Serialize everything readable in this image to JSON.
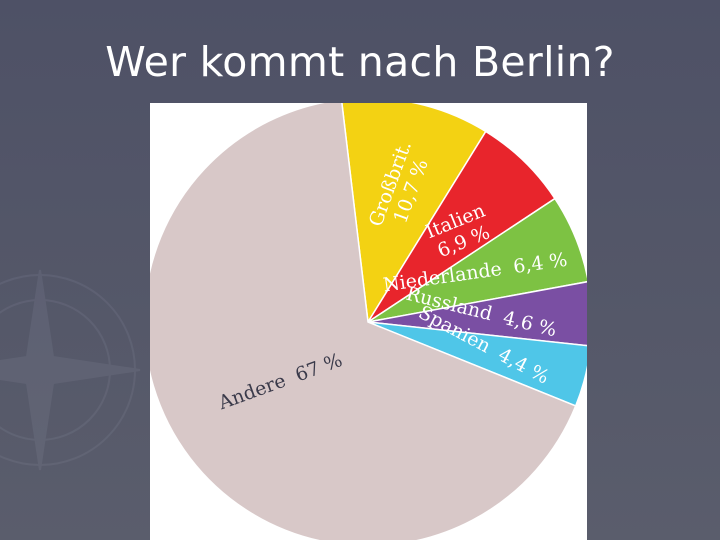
{
  "slide": {
    "title": "Wer kommt nach Berlin?"
  },
  "chart_data": {
    "type": "pie",
    "title": "",
    "slices": [
      {
        "category": "Großbrit.",
        "value": 10.7,
        "label_value": "10,7 %",
        "color": "#f3d213"
      },
      {
        "category": "Italien",
        "value": 6.9,
        "label_value": "6,9 %",
        "color": "#e8252c"
      },
      {
        "category": "Niederlande",
        "value": 6.4,
        "label_value": "6,4 %",
        "color": "#7dc243"
      },
      {
        "category": "Russland",
        "value": 4.6,
        "label_value": "4,6 %",
        "color": "#7a4fa3"
      },
      {
        "category": "Spanien",
        "value": 4.4,
        "label_value": "4,4 %",
        "color": "#4fc6e8"
      },
      {
        "category": "Andere",
        "value": 67,
        "label_value": "67 %",
        "color": "#d8c8c8"
      }
    ]
  },
  "colors": {
    "background": "#52556a",
    "title_text": "#ffffff"
  }
}
